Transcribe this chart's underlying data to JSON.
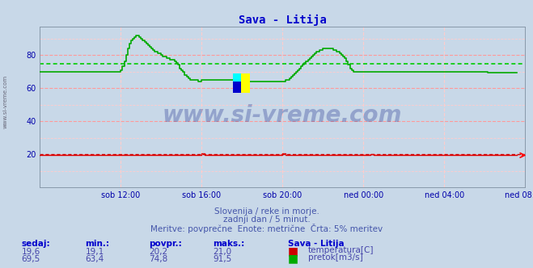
{
  "title": "Sava - Litija",
  "title_color": "#0000cc",
  "bg_color": "#c8d8e8",
  "plot_bg_color": "#c8d8e8",
  "grid_major_color": "#ff9999",
  "grid_minor_color": "#ffcccc",
  "vert_grid_color": "#ffcccc",
  "xlabel_color": "#0000aa",
  "ylabel_color": "#0000aa",
  "xlim": [
    0,
    288
  ],
  "ylim": [
    0,
    97
  ],
  "yticks": [
    20,
    40,
    60,
    80
  ],
  "xtick_labels": [
    "sob 12:00",
    "sob 16:00",
    "sob 20:00",
    "ned 00:00",
    "ned 04:00",
    "ned 08:00"
  ],
  "xtick_positions": [
    48,
    96,
    144,
    192,
    240,
    288
  ],
  "temp_color": "#dd0000",
  "flow_color": "#00aa00",
  "avg_flow_color": "#00cc00",
  "avg_temp_color": "#cc0000",
  "avg_flow": 74.8,
  "avg_temp": 20.2,
  "watermark_text": "www.si-vreme.com",
  "sidebar_text": "www.si-vreme.com",
  "sub_text1": "Slovenija / reke in morje.",
  "sub_text2": "zadnji dan / 5 minut.",
  "sub_text3": "Meritve: povprečne  Enote: metrične  Črta: 5% meritev",
  "footer_color": "#4455aa",
  "table_headers": [
    "sedaj:",
    "min.:",
    "povpr.:",
    "maks.:",
    "Sava - Litija"
  ],
  "table_row1_vals": [
    "19,6",
    "19,1",
    "20,2",
    "21,0"
  ],
  "table_row2_vals": [
    "69,5",
    "63,4",
    "74,8",
    "91,5"
  ],
  "table_row1_label": "temperatura[C]",
  "table_row2_label": "pretok[m3/s]",
  "temp_color_box": "#cc0000",
  "flow_color_box": "#00aa00",
  "flow_data": [
    70,
    70,
    70,
    70,
    70,
    70,
    70,
    70,
    70,
    70,
    70,
    70,
    70,
    70,
    70,
    70,
    70,
    70,
    70,
    70,
    70,
    70,
    70,
    70,
    70,
    70,
    70,
    70,
    70,
    70,
    70,
    70,
    70,
    70,
    70,
    70,
    70,
    70,
    70,
    70,
    70,
    70,
    70,
    70,
    70,
    70,
    70,
    70,
    71,
    73,
    76,
    80,
    84,
    87,
    89,
    90,
    91,
    91.5,
    91.5,
    91,
    90,
    89,
    88,
    87,
    86,
    85,
    84,
    83,
    82,
    82,
    81,
    81,
    80,
    79,
    79,
    78,
    78,
    77,
    77,
    77,
    76,
    75,
    74,
    72,
    71,
    70,
    68,
    67,
    66,
    65,
    65,
    65,
    65,
    65,
    64,
    64,
    65,
    65,
    65,
    65,
    65,
    65,
    65,
    65,
    65,
    65,
    65,
    65,
    65,
    65,
    65,
    65,
    65,
    65,
    65,
    65,
    64,
    64,
    64,
    64,
    64,
    64,
    64,
    64,
    64,
    64,
    64,
    64,
    64,
    64,
    64,
    64,
    64,
    64,
    64,
    64,
    64,
    64,
    64,
    64,
    64,
    64,
    64,
    64,
    64,
    64,
    65,
    65,
    66,
    67,
    68,
    69,
    70,
    71,
    72,
    73,
    74,
    75,
    76,
    77,
    78,
    79,
    80,
    81,
    82,
    82,
    83,
    83,
    84,
    84,
    84,
    84,
    84,
    84,
    83,
    83,
    82,
    82,
    81,
    80,
    79,
    78,
    76,
    74,
    72,
    71,
    70,
    70,
    70,
    70,
    70,
    70,
    70,
    70,
    70,
    70,
    70,
    70,
    70,
    70,
    70,
    70,
    70,
    70,
    70,
    70,
    70,
    70,
    70,
    70,
    70,
    70,
    70,
    70,
    70,
    70,
    70,
    70,
    70,
    70,
    70,
    70,
    70,
    70,
    70,
    70,
    70,
    70,
    70,
    70,
    70,
    70,
    70,
    70,
    70,
    70,
    70,
    70,
    70,
    70,
    70,
    70,
    70,
    70,
    70,
    70,
    70,
    70,
    70,
    70,
    70,
    70,
    70,
    70,
    70,
    70,
    70,
    70,
    70,
    70,
    70,
    70,
    70,
    70,
    70,
    70,
    69.5,
    69.5,
    69.5,
    69.5,
    69.5,
    69.5,
    69.5,
    69.5,
    69.5,
    69.5,
    69.5,
    69.5,
    69.5,
    69.5,
    69.5,
    69.5,
    69.5,
    69.5
  ],
  "temp_base": 19.5,
  "temp_spikes": [
    [
      96,
      20.5
    ],
    [
      97,
      20.5
    ],
    [
      144,
      20.8
    ],
    [
      145,
      20.8
    ],
    [
      196,
      20.3
    ],
    [
      197,
      20.3
    ]
  ]
}
